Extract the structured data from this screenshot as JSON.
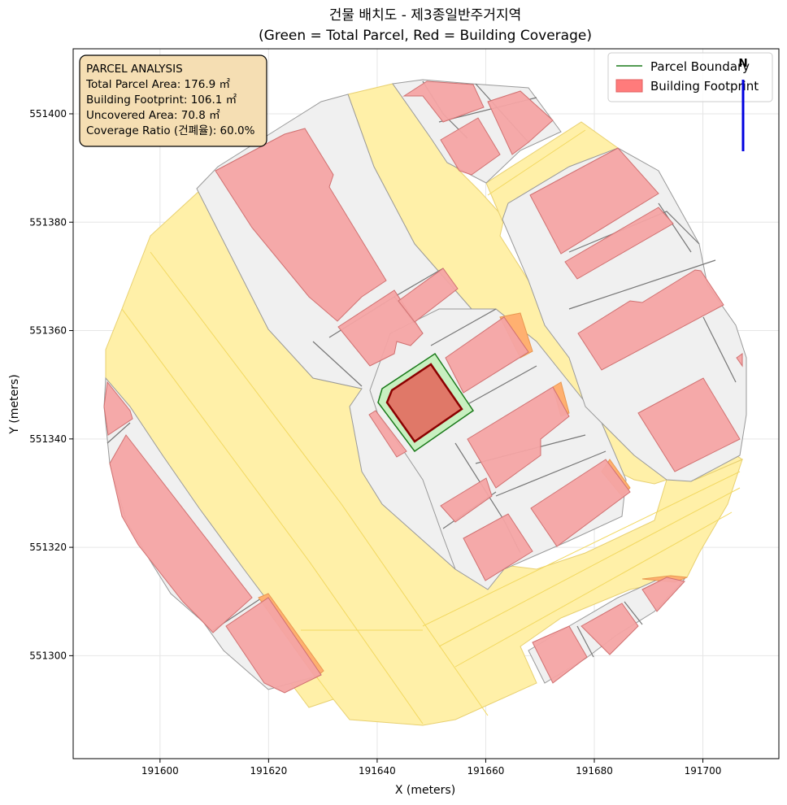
{
  "title_line1": "건물 배치도 - 제3종일반주거지역",
  "title_line2": "(Green = Total Parcel, Red = Building Coverage)",
  "info_box": {
    "heading": "PARCEL ANALYSIS",
    "total_parcel": "Total Parcel Area: 176.9 ㎡",
    "building_footprint": "Building Footprint: 106.1 ㎡",
    "uncovered": "Uncovered Area: 70.8 ㎡",
    "coverage": "Coverage Ratio (건폐율): 60.0%"
  },
  "legend": {
    "parcel_boundary": "Parcel Boundary",
    "building_footprint": "Building Footprint"
  },
  "north_label": "N",
  "colors": {
    "road": "#fff0a8",
    "parcel_gray": "#f0f0f0",
    "building": "#f4a4a4",
    "building_edge": "#d06060",
    "target_parcel": "#c8f0c0",
    "target_edge": "#1a7a1a",
    "target_building": "#e07868",
    "target_building_edge": "#8b0000",
    "info_box_bg": "#f5deb3",
    "north_arrow": "#0000e0"
  },
  "chart_data": {
    "type": "map",
    "title": "건물 배치도 - 제3종일반주거지역 (Green = Total Parcel, Red = Building Coverage)",
    "xlabel": "X (meters)",
    "ylabel": "Y (meters)",
    "xlim": [
      191584,
      191714
    ],
    "ylim": [
      551281,
      551412
    ],
    "x_ticks": [
      191600,
      191620,
      191640,
      191660,
      191680,
      191700
    ],
    "x_tick_labels": [
      "191600",
      "191620",
      "191640",
      "191660",
      "191680",
      "191700"
    ],
    "y_ticks": [
      551300,
      551320,
      551340,
      551360,
      551380,
      551400
    ],
    "y_tick_labels": [
      "551300",
      "551320",
      "551340",
      "551360",
      "551380",
      "551400"
    ],
    "grid": true,
    "legend_position": "top-right",
    "target_parcel": {
      "total_area_m2": 176.9,
      "building_footprint_m2": 106.1,
      "uncovered_area_m2": 70.8,
      "coverage_ratio_pct": 60.0
    }
  }
}
